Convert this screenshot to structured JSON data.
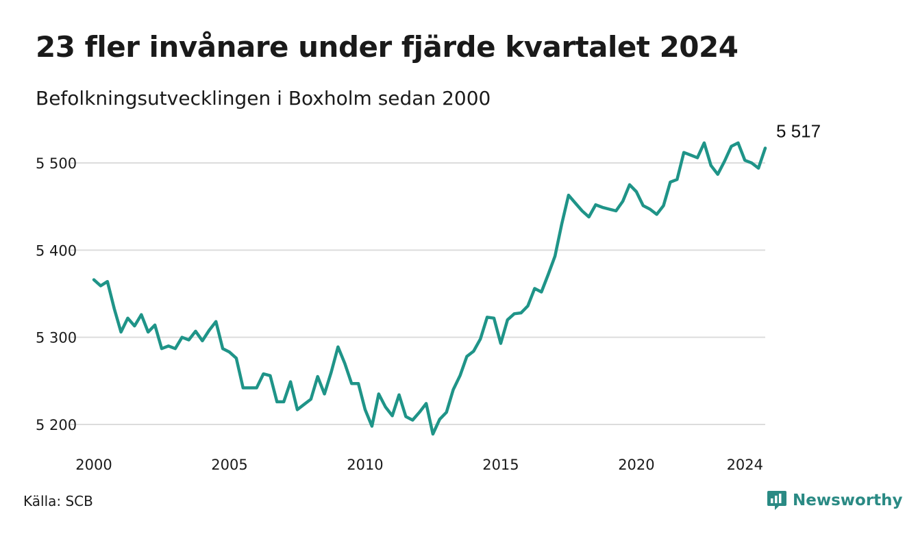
{
  "title": "23 fler invånare under fjärde kvartalet 2024",
  "subtitle": "Befolkningsutvecklingen i Boxholm sedan 2000",
  "source": "Källa: SCB",
  "brand": {
    "name": "Newsworthy",
    "icon": "newsworthy-logo-icon",
    "color": "#2a8a84"
  },
  "chart_data": {
    "type": "line",
    "title": "23 fler invånare under fjärde kvartalet 2024",
    "subtitle": "Befolkningsutvecklingen i Boxholm sedan 2000",
    "xlabel": "",
    "ylabel": "",
    "line_color": "#1f9488",
    "grid": true,
    "ylim": [
      5185,
      5530
    ],
    "xlim": [
      2000.0,
      2024.75
    ],
    "x_ticks": [
      {
        "value": 2000,
        "label": "2000"
      },
      {
        "value": 2005,
        "label": "2005"
      },
      {
        "value": 2010,
        "label": "2010"
      },
      {
        "value": 2015,
        "label": "2015"
      },
      {
        "value": 2020,
        "label": "2020"
      },
      {
        "value": 2024,
        "label": "2024"
      }
    ],
    "y_ticks": [
      {
        "value": 5200,
        "label": "5 200"
      },
      {
        "value": 5300,
        "label": "5 300"
      },
      {
        "value": 5400,
        "label": "5 400"
      },
      {
        "value": 5500,
        "label": "5 500"
      }
    ],
    "end_label": "5 517",
    "x": [
      2000.0,
      2000.25,
      2000.5,
      2000.75,
      2001.0,
      2001.25,
      2001.5,
      2001.75,
      2002.0,
      2002.25,
      2002.5,
      2002.75,
      2003.0,
      2003.25,
      2003.5,
      2003.75,
      2004.0,
      2004.25,
      2004.5,
      2004.75,
      2005.0,
      2005.25,
      2005.5,
      2005.75,
      2006.0,
      2006.25,
      2006.5,
      2006.75,
      2007.0,
      2007.25,
      2007.5,
      2007.75,
      2008.0,
      2008.25,
      2008.5,
      2008.75,
      2009.0,
      2009.25,
      2009.5,
      2009.75,
      2010.0,
      2010.25,
      2010.5,
      2010.75,
      2011.0,
      2011.25,
      2011.5,
      2011.75,
      2012.0,
      2012.25,
      2012.5,
      2012.75,
      2013.0,
      2013.25,
      2013.5,
      2013.75,
      2014.0,
      2014.25,
      2014.5,
      2014.75,
      2015.0,
      2015.25,
      2015.5,
      2015.75,
      2016.0,
      2016.25,
      2016.5,
      2016.75,
      2017.0,
      2017.25,
      2017.5,
      2017.75,
      2018.0,
      2018.25,
      2018.5,
      2018.75,
      2019.0,
      2019.25,
      2019.5,
      2019.75,
      2020.0,
      2020.25,
      2020.5,
      2020.75,
      2021.0,
      2021.25,
      2021.5,
      2021.75,
      2022.0,
      2022.25,
      2022.5,
      2022.75,
      2023.0,
      2023.25,
      2023.5,
      2023.75,
      2024.0,
      2024.25,
      2024.5,
      2024.75
    ],
    "values": [
      5366,
      5359,
      5364,
      5333,
      5306,
      5322,
      5313,
      5326,
      5306,
      5314,
      5287,
      5290,
      5287,
      5300,
      5297,
      5307,
      5296,
      5308,
      5318,
      5287,
      5283,
      5276,
      5242,
      5242,
      5242,
      5258,
      5256,
      5226,
      5226,
      5249,
      5217,
      5223,
      5229,
      5255,
      5235,
      5260,
      5289,
      5270,
      5247,
      5247,
      5217,
      5198,
      5235,
      5220,
      5210,
      5234,
      5209,
      5205,
      5214,
      5224,
      5189,
      5206,
      5214,
      5240,
      5256,
      5278,
      5284,
      5298,
      5323,
      5322,
      5293,
      5320,
      5327,
      5328,
      5336,
      5356,
      5352,
      5372,
      5393,
      5430,
      5463,
      5454,
      5445,
      5438,
      5452,
      5449,
      5447,
      5445,
      5456,
      5475,
      5467,
      5451,
      5447,
      5441,
      5451,
      5478,
      5481,
      5512,
      5509,
      5506,
      5523,
      5497,
      5487,
      5502,
      5519,
      5523,
      5503,
      5500,
      5494,
      5517
    ]
  }
}
